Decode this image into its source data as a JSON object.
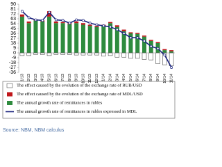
{
  "chart_data": {
    "type": "bar",
    "categories": [
      "1/13",
      "2/13",
      "3/13",
      "4/13",
      "5/13",
      "6/13",
      "7/13",
      "8/13",
      "9/13",
      "10/13",
      "11/13",
      "12/13",
      "1/14",
      "2/14",
      "3/14",
      "4/14",
      "5/14",
      "6/14",
      "7/14",
      "8/14",
      "9/14",
      "10/14",
      "11/14"
    ],
    "series": [
      {
        "name": "The effect caused by the evolution of the exchange rate of RUB/USD",
        "color": "#ffffff",
        "type": "bar",
        "values": [
          -5,
          -5,
          -3,
          -3,
          -5,
          -3,
          -3,
          -3,
          -4,
          -4,
          -4,
          -4,
          -6,
          -5,
          -8,
          -8,
          -10,
          -10,
          -12,
          -13,
          -20,
          -22,
          -24
        ]
      },
      {
        "name": "The effect caused by the evolution of the exchange rate of MDL/USD",
        "color": "#c0171b",
        "type": "bar",
        "values": [
          4,
          3,
          2,
          2,
          10,
          3,
          2,
          2,
          3,
          3,
          2,
          2,
          2,
          2,
          3,
          3,
          2,
          2,
          2,
          2,
          2,
          2,
          2
        ]
      },
      {
        "name": "The annual growth rate of remittances in rubles",
        "color": "#2e8b3e",
        "type": "bar",
        "values": [
          67,
          55,
          60,
          58,
          67,
          55,
          55,
          53,
          55,
          52,
          50,
          48,
          50,
          55,
          48,
          40,
          36,
          35,
          30,
          22,
          18,
          5,
          3
        ]
      },
      {
        "name": "The annual growth rate of remittances in rubles expressed in MDL",
        "color": "#1a237e",
        "type": "line",
        "values": [
          77,
          65,
          61,
          60,
          75,
          61,
          60,
          55,
          61,
          60,
          55,
          52,
          50,
          48,
          43,
          36,
          28,
          28,
          22,
          12,
          8,
          -4,
          -27
        ]
      }
    ],
    "ylim": [
      -36,
      90
    ],
    "yticks": [
      90,
      81,
      72,
      63,
      54,
      45,
      36,
      27,
      18,
      9,
      0,
      -9,
      -18,
      -27,
      -36
    ],
    "source": "Source: NBM, NBM calculus"
  }
}
